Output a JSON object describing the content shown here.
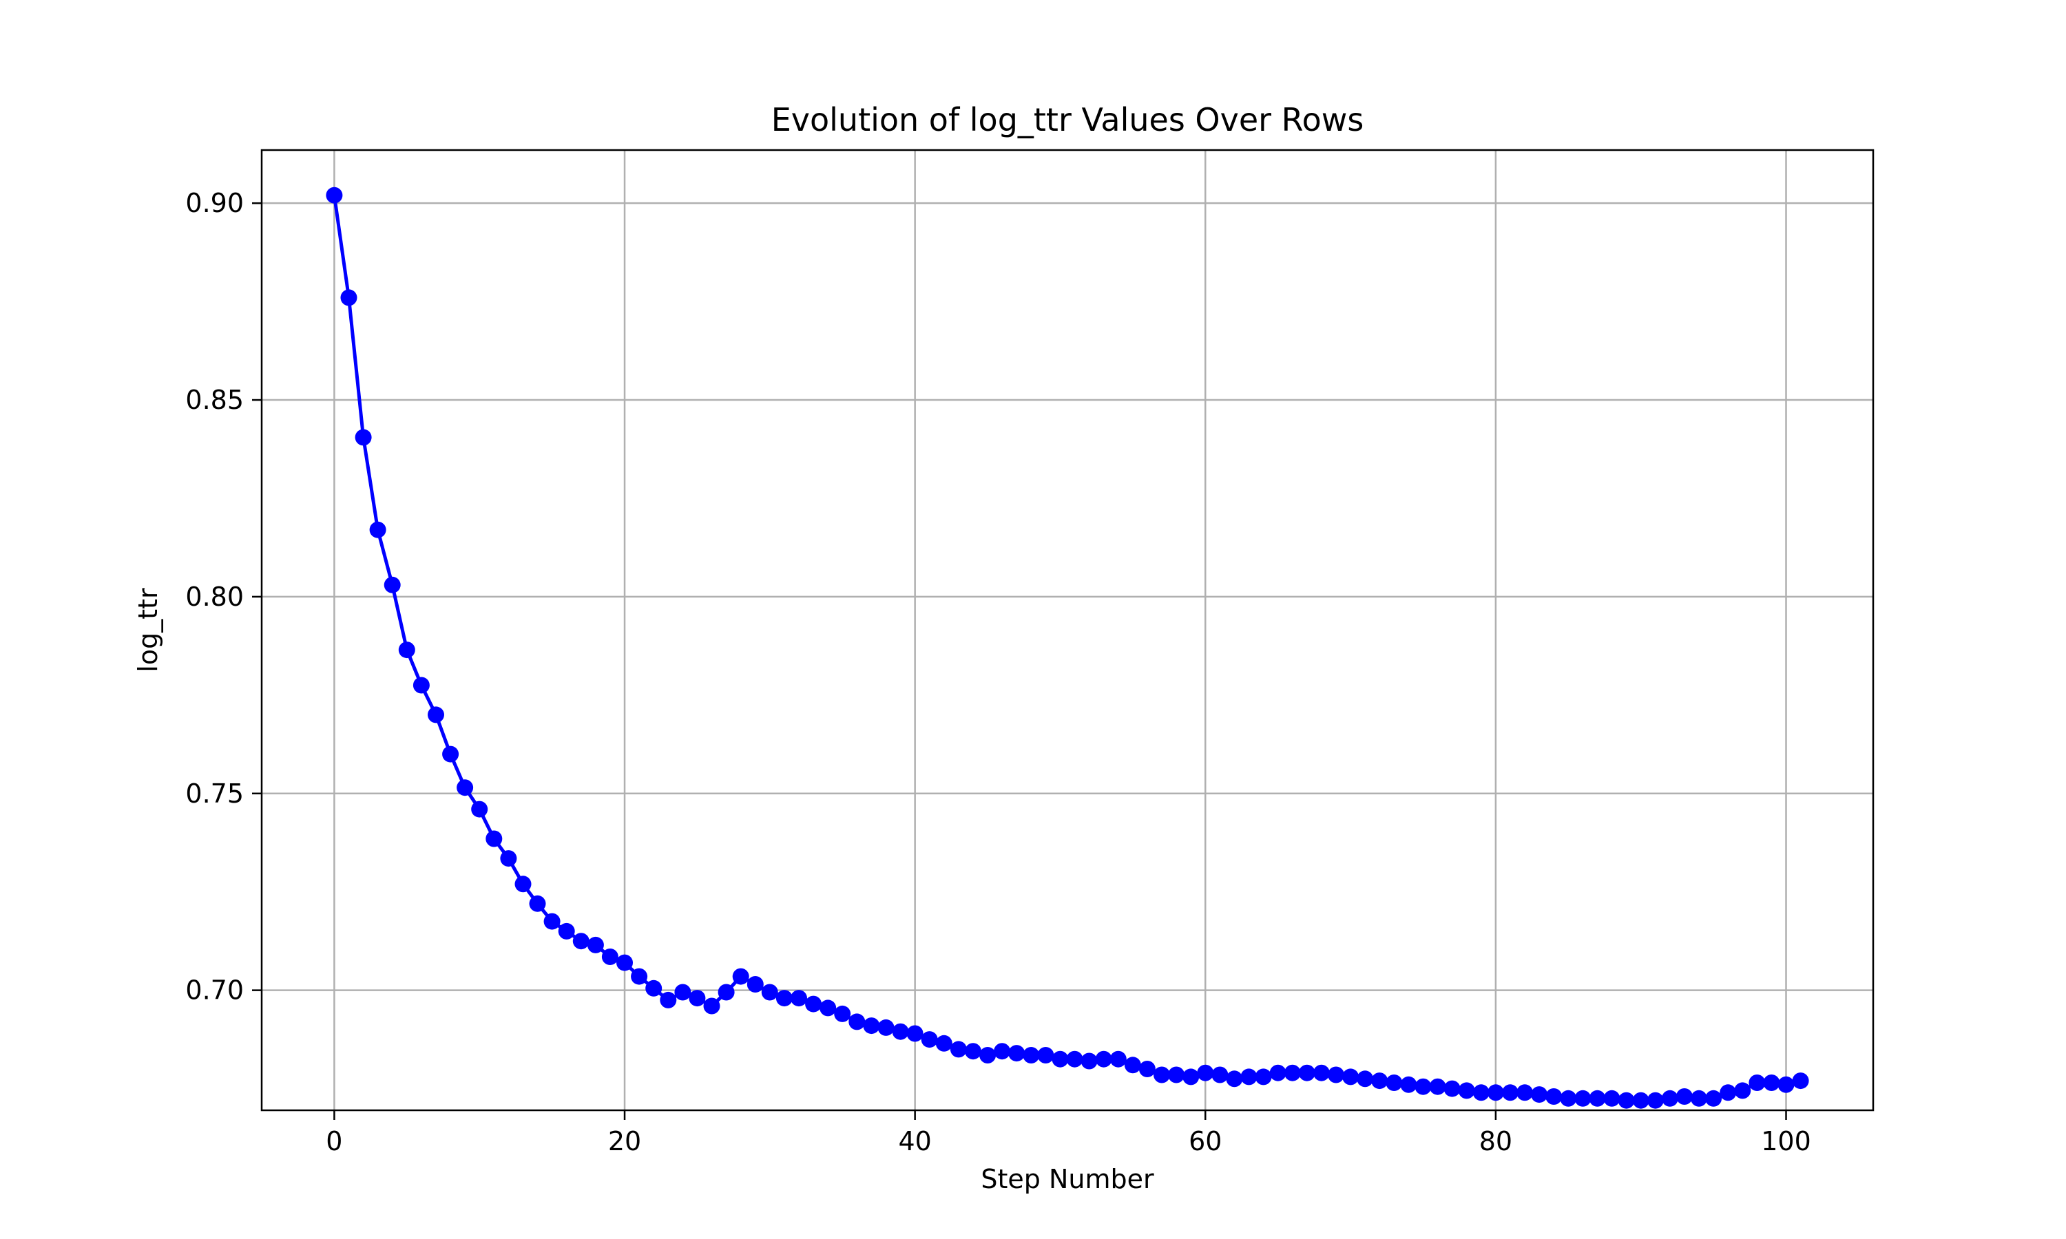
{
  "chart_data": {
    "type": "line",
    "title": "Evolution of log_ttr Values Over Rows",
    "xlabel": "Step Number",
    "ylabel": "log_ttr",
    "xlim": [
      -5,
      106
    ],
    "ylim": [
      0.6695,
      0.9135
    ],
    "xticks": [
      0,
      20,
      40,
      60,
      80,
      100
    ],
    "yticks": [
      0.7,
      0.75,
      0.8,
      0.85,
      0.9
    ],
    "grid": true,
    "legend": "none",
    "series": [
      {
        "color": "#0000ff",
        "marker": "circle",
        "x": [
          0,
          1,
          2,
          3,
          4,
          5,
          6,
          7,
          8,
          9,
          10,
          11,
          12,
          13,
          14,
          15,
          16,
          17,
          18,
          19,
          20,
          21,
          22,
          23,
          24,
          25,
          26,
          27,
          28,
          29,
          30,
          31,
          32,
          33,
          34,
          35,
          36,
          37,
          38,
          39,
          40,
          41,
          42,
          43,
          44,
          45,
          46,
          47,
          48,
          49,
          50,
          51,
          52,
          53,
          54,
          55,
          56,
          57,
          58,
          59,
          60,
          61,
          62,
          63,
          64,
          65,
          66,
          67,
          68,
          69,
          70,
          71,
          72,
          73,
          74,
          75,
          76,
          77,
          78,
          79,
          80,
          81,
          82,
          83,
          84,
          85,
          86,
          87,
          88,
          89,
          90,
          91,
          92,
          93,
          94,
          95,
          96,
          97,
          98,
          99,
          100,
          101
        ],
        "y": [
          0.902,
          0.876,
          0.8405,
          0.817,
          0.803,
          0.7865,
          0.7775,
          0.77,
          0.76,
          0.7515,
          0.746,
          0.7385,
          0.7335,
          0.727,
          0.722,
          0.7175,
          0.715,
          0.7125,
          0.7115,
          0.7085,
          0.707,
          0.7035,
          0.7005,
          0.6975,
          0.6995,
          0.698,
          0.696,
          0.6995,
          0.7035,
          0.7015,
          0.6995,
          0.698,
          0.698,
          0.6965,
          0.6955,
          0.694,
          0.692,
          0.691,
          0.6905,
          0.6895,
          0.689,
          0.6875,
          0.6865,
          0.685,
          0.6845,
          0.6835,
          0.6845,
          0.684,
          0.6835,
          0.6835,
          0.6825,
          0.6825,
          0.682,
          0.6825,
          0.6825,
          0.681,
          0.68,
          0.6785,
          0.6785,
          0.678,
          0.679,
          0.6785,
          0.6775,
          0.678,
          0.678,
          0.679,
          0.679,
          0.679,
          0.679,
          0.6785,
          0.678,
          0.6775,
          0.677,
          0.6765,
          0.676,
          0.6755,
          0.6755,
          0.675,
          0.6745,
          0.674,
          0.674,
          0.674,
          0.674,
          0.6735,
          0.673,
          0.6725,
          0.6725,
          0.6725,
          0.6725,
          0.672,
          0.672,
          0.672,
          0.6725,
          0.673,
          0.6725,
          0.6725,
          0.674,
          0.6745,
          0.6765,
          0.6765,
          0.676,
          0.677
        ]
      }
    ]
  }
}
